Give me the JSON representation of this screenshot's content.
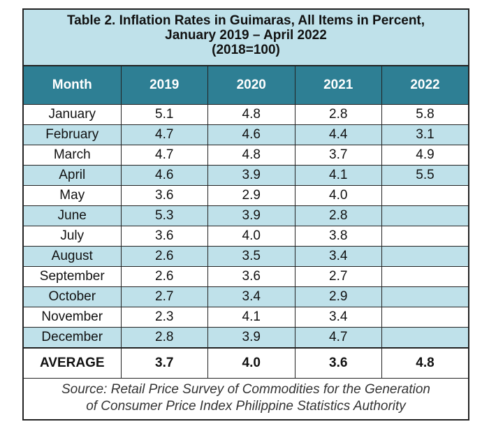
{
  "title": {
    "line1": "Table 2. Inflation Rates in Guimaras, All Items in Percent,",
    "line2": "January 2019 – April 2022",
    "line3": "(2018=100)"
  },
  "colors": {
    "header_bg": "#2e7f94",
    "band_bg": "#bfe1ea"
  },
  "chart_data": {
    "type": "table",
    "columns": [
      "Month",
      "2019",
      "2020",
      "2021",
      "2022"
    ],
    "rows": [
      [
        "January",
        "5.1",
        "4.8",
        "2.8",
        "5.8"
      ],
      [
        "February",
        "4.7",
        "4.6",
        "4.4",
        "3.1"
      ],
      [
        "March",
        "4.7",
        "4.8",
        "3.7",
        "4.9"
      ],
      [
        "April",
        "4.6",
        "3.9",
        "4.1",
        "5.5"
      ],
      [
        "May",
        "3.6",
        "2.9",
        "4.0",
        ""
      ],
      [
        "June",
        "5.3",
        "3.9",
        "2.8",
        ""
      ],
      [
        "July",
        "3.6",
        "4.0",
        "3.8",
        ""
      ],
      [
        "August",
        "2.6",
        "3.5",
        "3.4",
        ""
      ],
      [
        "September",
        "2.6",
        "3.6",
        "2.7",
        ""
      ],
      [
        "October",
        "2.7",
        "3.4",
        "2.9",
        ""
      ],
      [
        "November",
        "2.3",
        "4.1",
        "3.4",
        ""
      ],
      [
        "December",
        "2.8",
        "3.9",
        "4.7",
        ""
      ]
    ],
    "footer": [
      "AVERAGE",
      "3.7",
      "4.0",
      "3.6",
      "4.8"
    ]
  },
  "source": {
    "line1": "Source: Retail Price Survey of Commodities for the Generation",
    "line2": "of Consumer Price Index Philippine Statistics Authority"
  }
}
